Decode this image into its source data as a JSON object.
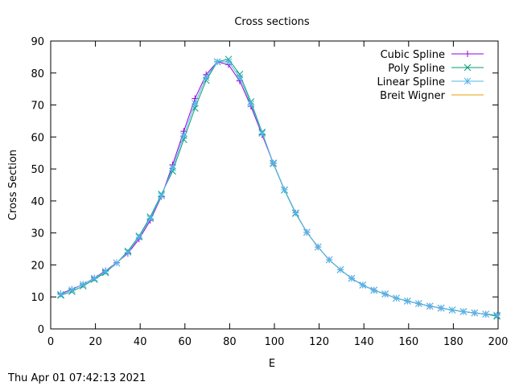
{
  "chart_data": {
    "type": "line",
    "title": "Cross sections",
    "xlabel": "E",
    "ylabel": "Cross Section",
    "xlim": [
      0,
      200
    ],
    "ylim": [
      0,
      90
    ],
    "x_ticks": [
      0,
      20,
      40,
      60,
      80,
      100,
      120,
      140,
      160,
      180,
      200
    ],
    "y_ticks": [
      0,
      10,
      20,
      30,
      40,
      50,
      60,
      70,
      80,
      90
    ],
    "grid": false,
    "legend_position": "top-right",
    "measured_x": [
      4.5,
      9.5,
      14.5,
      19.5,
      24.5,
      29.5,
      34.5,
      39.5,
      44.5,
      49.5,
      54.5,
      59.5,
      64.5,
      69.5,
      74.5,
      79.5,
      84.5,
      89.5,
      94.5,
      99.5,
      104.5,
      109.5,
      114.5,
      119.5,
      124.5,
      129.5,
      134.5,
      139.5,
      144.5,
      149.5,
      154.5,
      159.5,
      164.5,
      169.5,
      174.5,
      179.5,
      184.5,
      189.5,
      194.5,
      199.5
    ],
    "series": [
      {
        "name": "Cubic Spline",
        "color": "#9400d3",
        "marker": "plus",
        "values": [
          11.0,
          12.4,
          13.9,
          15.9,
          18.2,
          20.7,
          23.6,
          28.1,
          33.9,
          41.4,
          51.3,
          61.8,
          72.0,
          79.5,
          83.5,
          82.6,
          77.5,
          69.6,
          60.7,
          51.8,
          43.5,
          36.3,
          30.2,
          25.6,
          21.6,
          18.5,
          15.8,
          13.7,
          12.1,
          10.9,
          9.6,
          8.7,
          7.9,
          7.1,
          6.5,
          5.9,
          5.4,
          5.0,
          4.6,
          4.3
        ]
      },
      {
        "name": "Poly Spline",
        "color": "#009e73",
        "marker": "cross",
        "values": [
          10.5,
          11.7,
          13.4,
          15.5,
          17.6,
          20.6,
          24.3,
          29.0,
          35.0,
          42.1,
          49.3,
          59.2,
          69.0,
          77.7,
          83.5,
          84.3,
          79.6,
          71.0,
          61.5,
          51.7,
          43.4,
          36.1,
          30.2,
          25.6,
          21.6,
          18.5,
          15.8,
          13.7,
          12.1,
          10.9,
          9.6,
          8.7,
          7.9,
          7.1,
          6.5,
          5.9,
          5.4,
          5.0,
          4.6,
          4.0
        ]
      },
      {
        "name": "Linear Spline",
        "color": "#56b4e9",
        "marker": "star",
        "values": [
          10.8,
          12.2,
          13.9,
          15.8,
          18.0,
          20.6,
          23.9,
          28.7,
          34.5,
          41.6,
          50.3,
          60.4,
          70.5,
          78.6,
          83.5,
          83.5,
          78.6,
          70.3,
          61.1,
          51.9,
          43.5,
          36.3,
          30.2,
          25.6,
          21.6,
          18.5,
          15.8,
          13.7,
          12.1,
          10.9,
          9.6,
          8.7,
          7.9,
          7.1,
          6.5,
          5.9,
          5.4,
          5.0,
          4.6,
          4.3
        ]
      },
      {
        "name": "Breit Wigner",
        "color": "#e69f00",
        "marker": "none",
        "values": []
      }
    ]
  },
  "timestamp": "Thu Apr 01 07:42:13 2021"
}
